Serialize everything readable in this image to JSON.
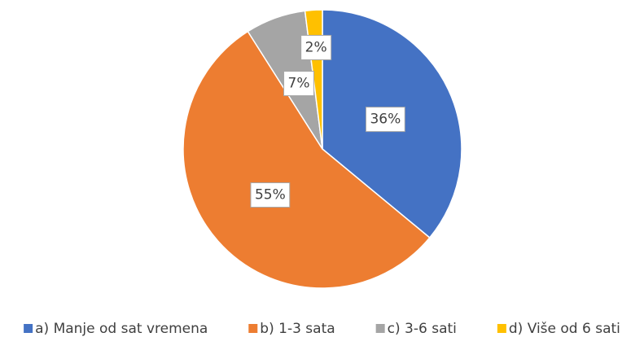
{
  "chart_data": {
    "type": "pie",
    "categories": [
      "a) Manje od sat vremena",
      "b) 1-3 sata",
      "c) 3-6 sati",
      "d) Više od 6 sati"
    ],
    "values": [
      36,
      55,
      7,
      2
    ],
    "value_labels": [
      "36%",
      "55%",
      "7%",
      "2%"
    ],
    "colors": [
      "#4472c4",
      "#ed7d31",
      "#a5a5a5",
      "#ffc000"
    ],
    "legend": "bottom"
  }
}
